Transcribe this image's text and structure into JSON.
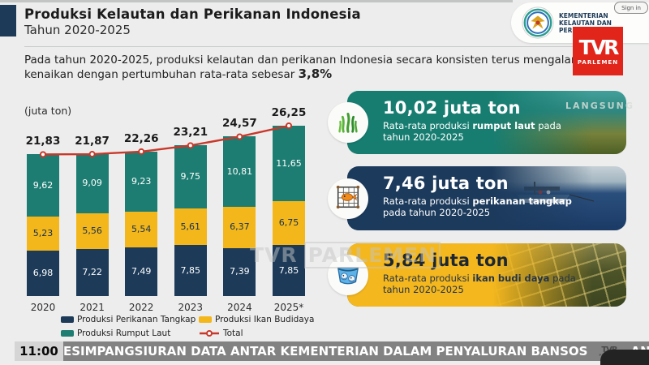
{
  "header": {
    "title": "Produksi Kelautan dan Perikanan Indonesia",
    "subtitle": "Tahun 2020-2025",
    "intro_text": "Pada tahun 2020-2025, produksi kelautan dan perikanan Indonesia secara konsisten terus mengalami kenaikan dengan pertumbuhan rata-rata sebesar ",
    "intro_bold": "3,8%"
  },
  "branding": {
    "ministry_line1": "KEMENTERIAN",
    "ministry_line2": "KELAUTAN DAN",
    "ministry_line3": "PERIKANAN",
    "tvr_logo_text": "TVR",
    "tvr_logo_sub": "PARLEMEN",
    "sign_in_label": "Sign in",
    "langsung_label": "LANGSUNG",
    "watermark_text": "TVR",
    "watermark_boxed": "PARLEMEN"
  },
  "chart_data": {
    "type": "bar",
    "stacked": true,
    "unit_label": "(juta ton)",
    "categories": [
      "2020",
      "2021",
      "2022",
      "2023",
      "2024",
      "2025*"
    ],
    "series": [
      {
        "name": "Produksi Perikanan Tangkap",
        "color": "#1d3b59",
        "label_color": "#ffffff",
        "values": [
          6.98,
          7.22,
          7.49,
          7.85,
          7.39,
          7.85
        ],
        "labels": [
          "6,98",
          "7,22",
          "7,49",
          "7,85",
          "7,39",
          "7,85"
        ]
      },
      {
        "name": "Produksi Ikan Budidaya",
        "color": "#f3b71b",
        "label_color": "#16304d",
        "values": [
          5.23,
          5.56,
          5.54,
          5.61,
          6.37,
          6.75
        ],
        "labels": [
          "5,23",
          "5,56",
          "5,54",
          "5,61",
          "6,37",
          "6,75"
        ]
      },
      {
        "name": "Produksi Rumput Laut",
        "color": "#1e7d72",
        "label_color": "#ffffff",
        "values": [
          9.62,
          9.09,
          9.23,
          9.75,
          10.81,
          11.65
        ],
        "labels": [
          "9,62",
          "9,09",
          "9,23",
          "9,75",
          "10,81",
          "11,65"
        ]
      }
    ],
    "total_series_name": "Total",
    "total_color": "#c9382a",
    "totals": [
      21.83,
      21.87,
      22.26,
      23.21,
      24.57,
      26.25
    ],
    "total_labels": [
      "21,83",
      "21,87",
      "22,26",
      "23,21",
      "24,57",
      "26,25"
    ],
    "legend_position": "bottom",
    "ylim": [
      0,
      28
    ]
  },
  "stat_cards": [
    {
      "value": "10,02 juta ton",
      "desc_prefix": "Rata-rata produksi ",
      "keyword": "rumput laut",
      "desc_suffix": " pada tahun 2020-2025",
      "icon": "seaweed-icon",
      "bg": "#177d71"
    },
    {
      "value": "7,46 juta ton",
      "desc_prefix": "Rata-rata produksi ",
      "keyword": "perikanan tangkap",
      "desc_suffix": " pada tahun 2020-2025",
      "icon": "fishing-net-icon",
      "bg": "#1c3a5c"
    },
    {
      "value": "5,84 juta ton",
      "desc_prefix": "Rata-rata produksi ",
      "keyword": "ikan budi daya",
      "desc_suffix": " pada tahun 2020-2025",
      "icon": "fish-pond-icon",
      "bg": "#f4b71e"
    }
  ],
  "ticker": {
    "time": "11:00",
    "headline_1": "ESIMPANGSIURAN DATA ANTAR KEMENTERIAN DALAM PENYALURAN BANSOS",
    "headline_2": "ANGGOTA KO"
  },
  "colors": {
    "page_bg": "#ecedec",
    "accent_navy": "#1d3b59",
    "teal": "#1e7d72",
    "yellow": "#f3b71b",
    "line_red": "#c9382a",
    "tvr_red": "#e1251b",
    "ticker_gray": "#7a7a7a"
  }
}
